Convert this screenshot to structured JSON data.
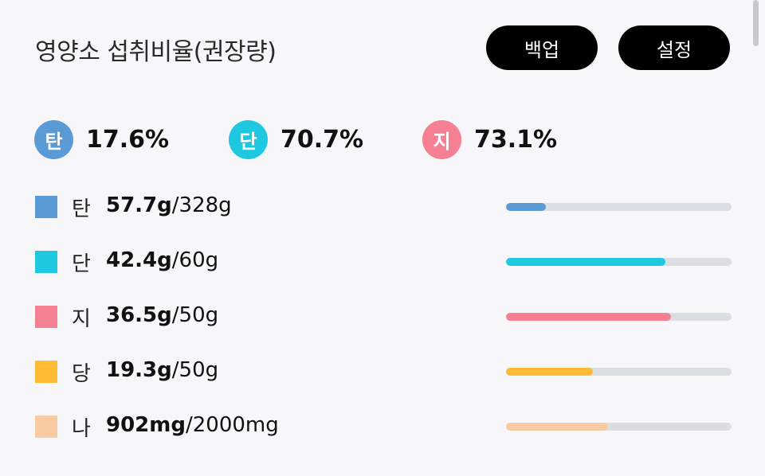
{
  "header": {
    "title": "영양소 섭취비율(권장량)",
    "backup_label": "백업",
    "settings_label": "설정"
  },
  "ratios": [
    {
      "label": "탄",
      "value": "17.6%",
      "color": "#5b9bd5"
    },
    {
      "label": "단",
      "value": "70.7%",
      "color": "#1ec8e0"
    },
    {
      "label": "지",
      "value": "73.1%",
      "color": "#f57f93"
    }
  ],
  "nutrients": [
    {
      "label": "탄",
      "current": "57.7g",
      "total": "/328g",
      "color": "#5b9bd5",
      "fraction": 0.176
    },
    {
      "label": "단",
      "current": "42.4g",
      "total": "/60g",
      "color": "#1ec8e0",
      "fraction": 0.707
    },
    {
      "label": "지",
      "current": "36.5g",
      "total": "/50g",
      "color": "#f57f93",
      "fraction": 0.73
    },
    {
      "label": "당",
      "current": "19.3g",
      "total": "/50g",
      "color": "#ffbb33",
      "fraction": 0.386
    },
    {
      "label": "나",
      "current": "902mg",
      "total": "/2000mg",
      "color": "#f8cba4",
      "fraction": 0.451
    }
  ]
}
